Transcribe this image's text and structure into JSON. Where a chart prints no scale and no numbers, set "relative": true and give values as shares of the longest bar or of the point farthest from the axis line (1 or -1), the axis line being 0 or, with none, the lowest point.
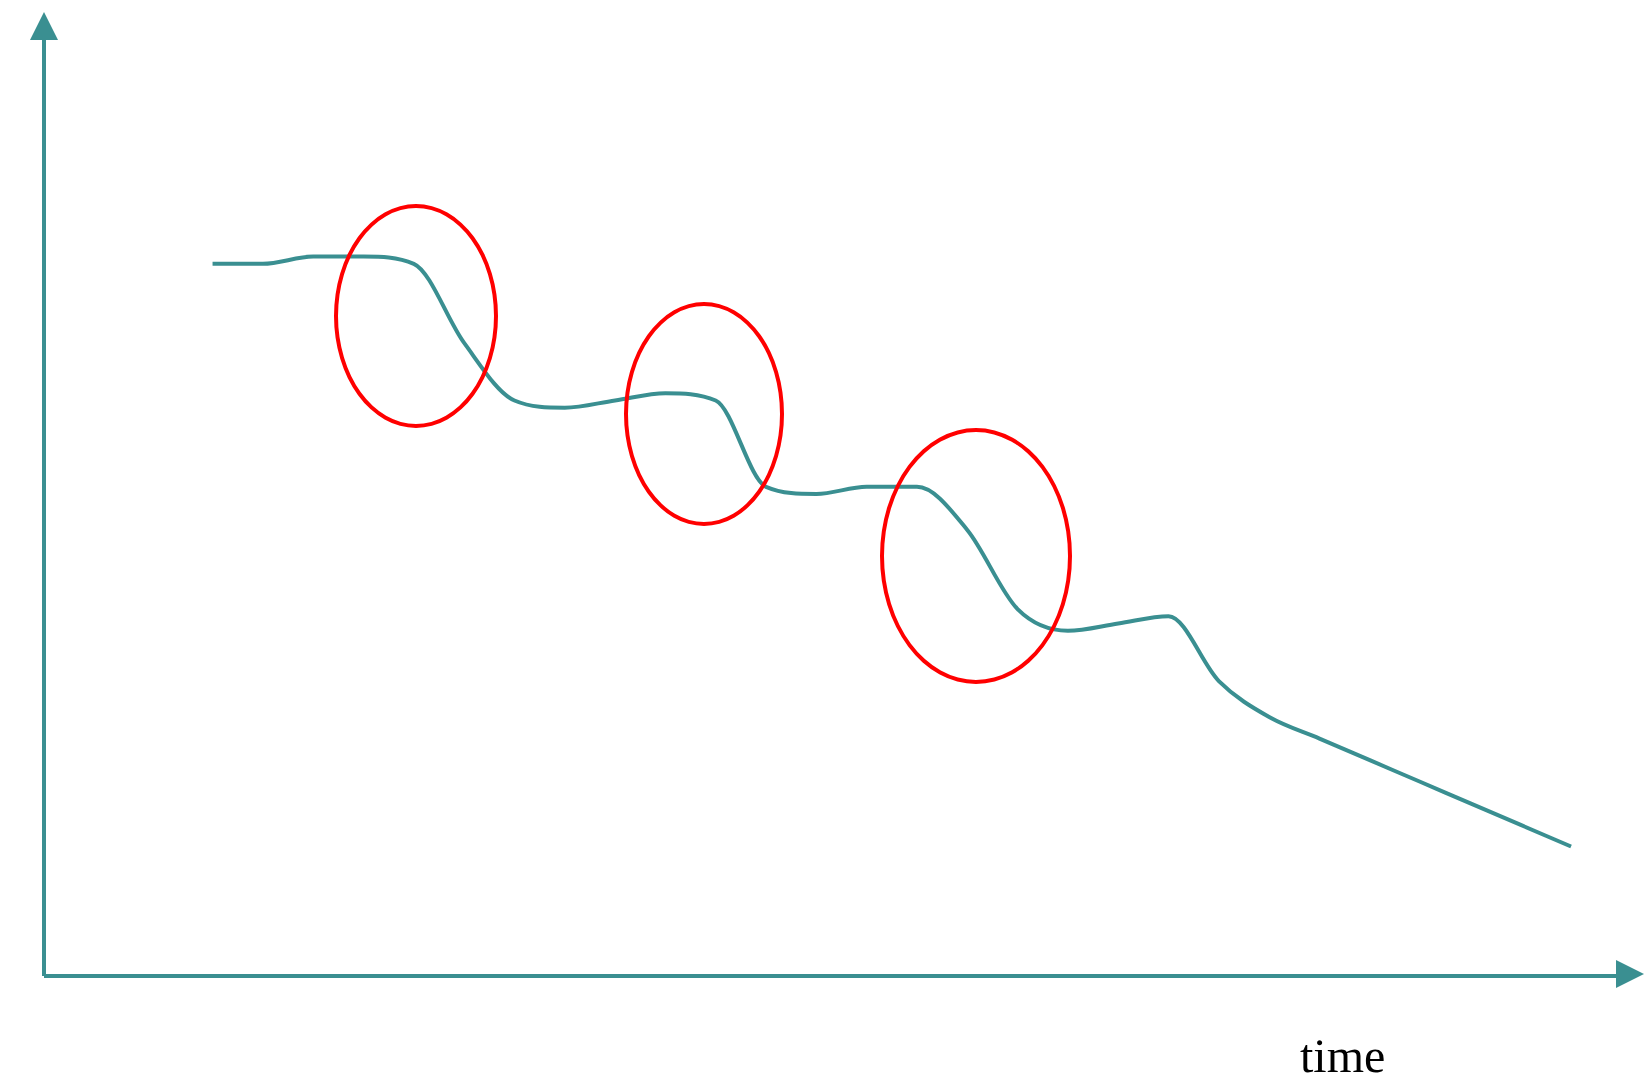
{
  "chart_data": {
    "type": "line",
    "relative": true,
    "xlabel": "time",
    "marker": "none",
    "categories": [
      null,
      null,
      null,
      null,
      null,
      null,
      null,
      null,
      null,
      null,
      null,
      null,
      null,
      null,
      null,
      null,
      null,
      null,
      null,
      null,
      null,
      null,
      null,
      null,
      null,
      null,
      null,
      null
    ],
    "series": [
      {
        "color": "#3a8f91",
        "values": [
          0.99,
          0.99,
          1.0,
          1.0,
          0.99,
          0.88,
          0.8,
          0.79,
          0.8,
          0.81,
          0.8,
          0.68,
          0.67,
          0.68,
          0.68,
          0.62,
          0.51,
          0.48,
          0.49,
          0.5,
          0.41,
          0.36,
          0.33,
          0.3,
          0.27,
          0.24,
          0.21,
          0.18
        ]
      }
    ]
  }
}
